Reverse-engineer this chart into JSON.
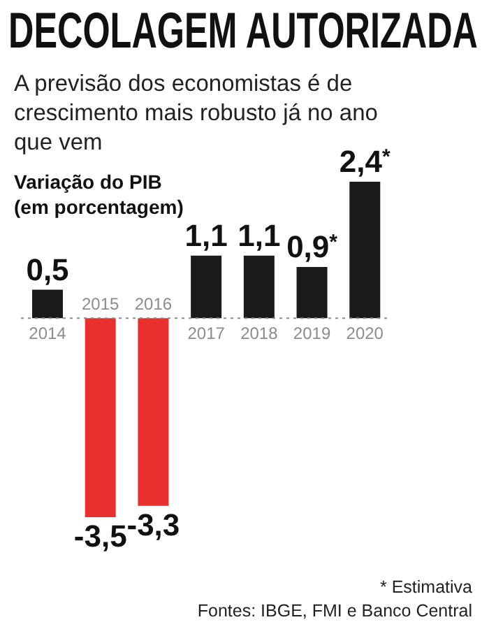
{
  "chart_data": {
    "type": "bar",
    "title": "DECOLAGEM AUTORIZADA",
    "subtitle": "A previsão dos economistas é de crescimento mais robusto já no ano que vem",
    "ylabel": "Variação do PIB\n(em porcentagem)",
    "categories": [
      "2014",
      "2015",
      "2016",
      "2017",
      "2018",
      "2019",
      "2020"
    ],
    "values": [
      0.5,
      -3.5,
      -3.3,
      1.1,
      1.1,
      0.9,
      2.4
    ],
    "colors": [
      "#1a1a1a",
      "#e8302e",
      "#e8302e",
      "#1a1a1a",
      "#1a1a1a",
      "#1a1a1a",
      "#1a1a1a"
    ],
    "value_labels": [
      "0,5",
      "-3,5",
      "-3,3",
      "1,1",
      "1,1",
      "0,9$^{*}$",
      "2,4$^{*}$"
    ],
    "ref_lines": [
      {
        "axis": "y",
        "value": 0,
        "color": "#8c8c8c",
        "line_style": "dotted"
      }
    ],
    "annotations": [
      "* Estimativa",
      "Fontes: IBGE, FMI e Banco Central"
    ]
  }
}
